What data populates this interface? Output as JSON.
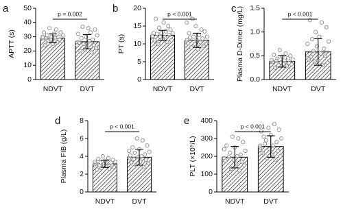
{
  "chart_data": [
    {
      "type": "bar",
      "panel": "a",
      "ylabel": "APTT (s)",
      "categories": [
        "NDVT",
        "DVT"
      ],
      "values": [
        29,
        26.5
      ],
      "errors": [
        3,
        5
      ],
      "annotation": "p = 0.002",
      "points": [
        [
          29,
          31,
          27,
          33,
          28,
          30,
          26,
          35,
          29,
          32,
          25,
          30,
          28,
          36,
          27,
          31,
          29,
          24,
          33,
          30
        ],
        [
          26,
          31,
          22,
          35,
          24,
          28,
          19,
          33,
          27,
          36,
          23,
          30,
          21,
          25,
          37,
          29,
          20,
          26,
          32,
          24
        ]
      ],
      "ylim": [
        0,
        50
      ],
      "yticks": [
        0,
        10,
        20,
        30,
        40,
        50
      ]
    },
    {
      "type": "bar",
      "panel": "b",
      "ylabel": "PT (s)",
      "categories": [
        "NDVT",
        "DVT"
      ],
      "values": [
        12.4,
        11
      ],
      "errors": [
        1.4,
        2
      ],
      "annotation": "p < 0.001",
      "points": [
        [
          12,
          13,
          11,
          14,
          12.5,
          15,
          10.5,
          13.5,
          12,
          16,
          11.5,
          13,
          12,
          14.5,
          10,
          12.8,
          17,
          11,
          13,
          12.2
        ],
        [
          11,
          12,
          10,
          13.5,
          9.5,
          11.5,
          14,
          10.5,
          12.5,
          8.5,
          11,
          15,
          10,
          12,
          17,
          9,
          11.8,
          13,
          10.2,
          16
        ]
      ],
      "ylim": [
        0,
        20
      ],
      "yticks": [
        0,
        5,
        10,
        15,
        20
      ]
    },
    {
      "type": "bar",
      "panel": "c",
      "ylabel": "Plasma D-Dimer (mg/L)",
      "categories": [
        "NDVT",
        "DVT"
      ],
      "values": [
        0.38,
        0.58
      ],
      "errors": [
        0.12,
        0.28
      ],
      "annotation": "p < 0.001",
      "points": [
        [
          0.38,
          0.42,
          0.32,
          0.5,
          0.35,
          0.45,
          0.28,
          0.55,
          0.4,
          0.33,
          0.48,
          0.36,
          0.62,
          0.3,
          0.44,
          0.39,
          0.25,
          0.52,
          0.37,
          0.41
        ],
        [
          0.45,
          0.8,
          0.35,
          1.1,
          0.5,
          0.65,
          0.3,
          1.2,
          0.55,
          0.9,
          0.4,
          0.7,
          1.0,
          0.38,
          0.6,
          0.85,
          0.48,
          1.25,
          0.42,
          0.75
        ]
      ],
      "ylim": [
        0,
        1.5
      ],
      "yticks": [
        {
          "value": 0,
          "label": "0.0"
        },
        {
          "value": 0.5,
          "label": "0.5"
        },
        {
          "value": 1,
          "label": "1.0"
        },
        {
          "value": 1.5,
          "label": "1.5"
        }
      ]
    },
    {
      "type": "bar",
      "panel": "d",
      "ylabel": "Plasma FIB (g/L)",
      "categories": [
        "NDVT",
        "DVT"
      ],
      "values": [
        3.15,
        3.9
      ],
      "errors": [
        0.4,
        0.9
      ],
      "annotation": "p < 0.001",
      "points": [
        [
          3.1,
          3.4,
          2.8,
          3.6,
          3.0,
          3.3,
          2.6,
          3.8,
          3.2,
          2.9,
          3.5,
          3.1,
          4.0,
          2.7,
          3.3,
          3.0,
          3.7,
          2.5,
          3.2,
          3.4
        ],
        [
          3.8,
          4.5,
          3.2,
          5.2,
          3.6,
          4.2,
          2.8,
          5.8,
          4.0,
          3.4,
          4.8,
          3.9,
          6.0,
          3.0,
          4.4,
          3.7,
          5.0,
          3.3,
          4.1,
          4.6
        ]
      ],
      "ylim": [
        0,
        8
      ],
      "yticks": [
        0,
        2,
        4,
        6,
        8
      ]
    },
    {
      "type": "bar",
      "panel": "e",
      "ylabel": "PLT (×10⁹/L)",
      "categories": [
        "NDVT",
        "DVT"
      ],
      "values": [
        195,
        255
      ],
      "errors": [
        60,
        60
      ],
      "annotation": "p < 0.001",
      "points": [
        [
          190,
          230,
          150,
          280,
          170,
          210,
          120,
          300,
          200,
          160,
          250,
          180,
          310,
          130,
          220,
          195,
          100,
          260,
          175,
          240
        ],
        [
          250,
          300,
          200,
          350,
          230,
          280,
          180,
          380,
          260,
          210,
          320,
          240,
          360,
          190,
          290,
          270,
          310,
          220,
          340,
          260
        ]
      ],
      "ylim": [
        0,
        400
      ],
      "yticks": [
        0,
        100,
        200,
        300,
        400
      ]
    }
  ]
}
